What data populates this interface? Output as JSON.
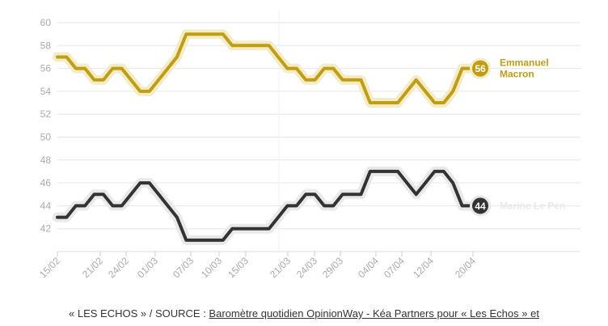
{
  "chart_data": {
    "type": "line",
    "title": "",
    "xlabel": "",
    "ylabel": "",
    "ylim": [
      40,
      60
    ],
    "yticks": [
      42,
      44,
      46,
      48,
      50,
      52,
      54,
      56,
      58,
      60
    ],
    "grid": true,
    "x_tick_labels": [
      "15/02",
      "21/02",
      "24/02",
      "01/03",
      "07/03",
      "10/03",
      "15/03",
      "21/03",
      "24/03",
      "29/03",
      "04/04",
      "07/04",
      "12/04",
      "20/04"
    ],
    "series": [
      {
        "name": "Emmanuel Macron",
        "label_lines": [
          "Emmanuel",
          "Macron"
        ],
        "end_value": "56",
        "color": "#c19d10",
        "values": [
          57,
          57,
          56,
          56,
          55,
          55,
          56,
          56,
          55,
          54,
          54,
          55,
          56,
          57,
          59,
          59,
          59,
          59,
          59,
          58,
          58,
          58,
          58,
          58,
          57,
          56,
          56,
          55,
          55,
          56,
          56,
          55,
          55,
          55,
          53,
          53,
          53,
          53,
          54,
          55,
          54,
          53,
          53,
          54,
          56,
          56
        ]
      },
      {
        "name": "Marine Le Pen",
        "label_lines": [
          "Marine Le Pen"
        ],
        "end_value": "44",
        "color": "#333333",
        "values": [
          43,
          43,
          44,
          44,
          45,
          45,
          44,
          44,
          45,
          46,
          46,
          45,
          44,
          43,
          41,
          41,
          41,
          41,
          41,
          42,
          42,
          42,
          42,
          42,
          43,
          44,
          44,
          45,
          45,
          44,
          44,
          45,
          45,
          45,
          47,
          47,
          47,
          47,
          46,
          45,
          46,
          47,
          47,
          46,
          44,
          44
        ]
      }
    ]
  },
  "source": {
    "prefix": "« LES ECHOS » / SOURCE : ",
    "link": "Baromètre quotidien OpinionWay - Kéa Partners pour « Les Echos » et"
  }
}
